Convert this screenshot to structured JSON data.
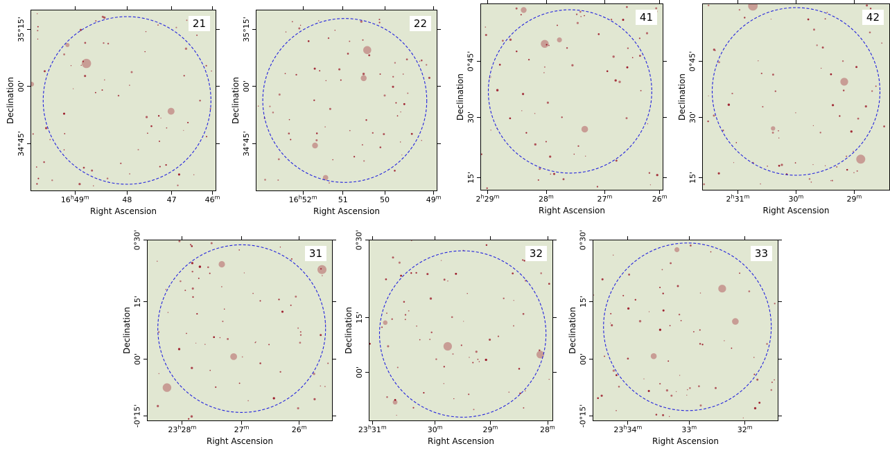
{
  "axes": {
    "xlabel": "Right Ascension",
    "ylabel": "Declination"
  },
  "panels": [
    {
      "id": "21",
      "xticks": [
        "16^h49^m",
        "48",
        "47",
        "46^m"
      ],
      "yticks": [
        "35°15'",
        "00'",
        "34°45'"
      ]
    },
    {
      "id": "22",
      "xticks": [
        "16^h52^m",
        "51",
        "50",
        "49^m"
      ],
      "yticks": [
        "35°15'",
        "00'",
        "34°45'"
      ]
    },
    {
      "id": "41",
      "xticks": [
        "2^h29^m",
        "28^m",
        "27^m",
        "26^m"
      ],
      "yticks": [
        "0°45'",
        "30'",
        "15'"
      ]
    },
    {
      "id": "42",
      "xticks": [
        "2^h31^m",
        "30^m",
        "29^m"
      ],
      "yticks": [
        "0°45'",
        "30'",
        "15'"
      ]
    },
    {
      "id": "31",
      "xticks": [
        "23^h28^m",
        "27^m",
        "26^m"
      ],
      "yticks": [
        "0°30'",
        "15'",
        "00'",
        "-0°15'"
      ]
    },
    {
      "id": "32",
      "xticks": [
        "23^h31^m",
        "30^m",
        "29^m",
        "28^m"
      ],
      "yticks": [
        "0°30'",
        "15'",
        "00'"
      ]
    },
    {
      "id": "33",
      "xticks": [
        "23^h34^m",
        "33^m",
        "32^m"
      ],
      "yticks": [
        "0°30'",
        "15'",
        "00'",
        "-0°15'"
      ]
    }
  ],
  "colors": {
    "background": "#e1e7d2",
    "circle": "#2222dd",
    "source": "#9a1525"
  }
}
